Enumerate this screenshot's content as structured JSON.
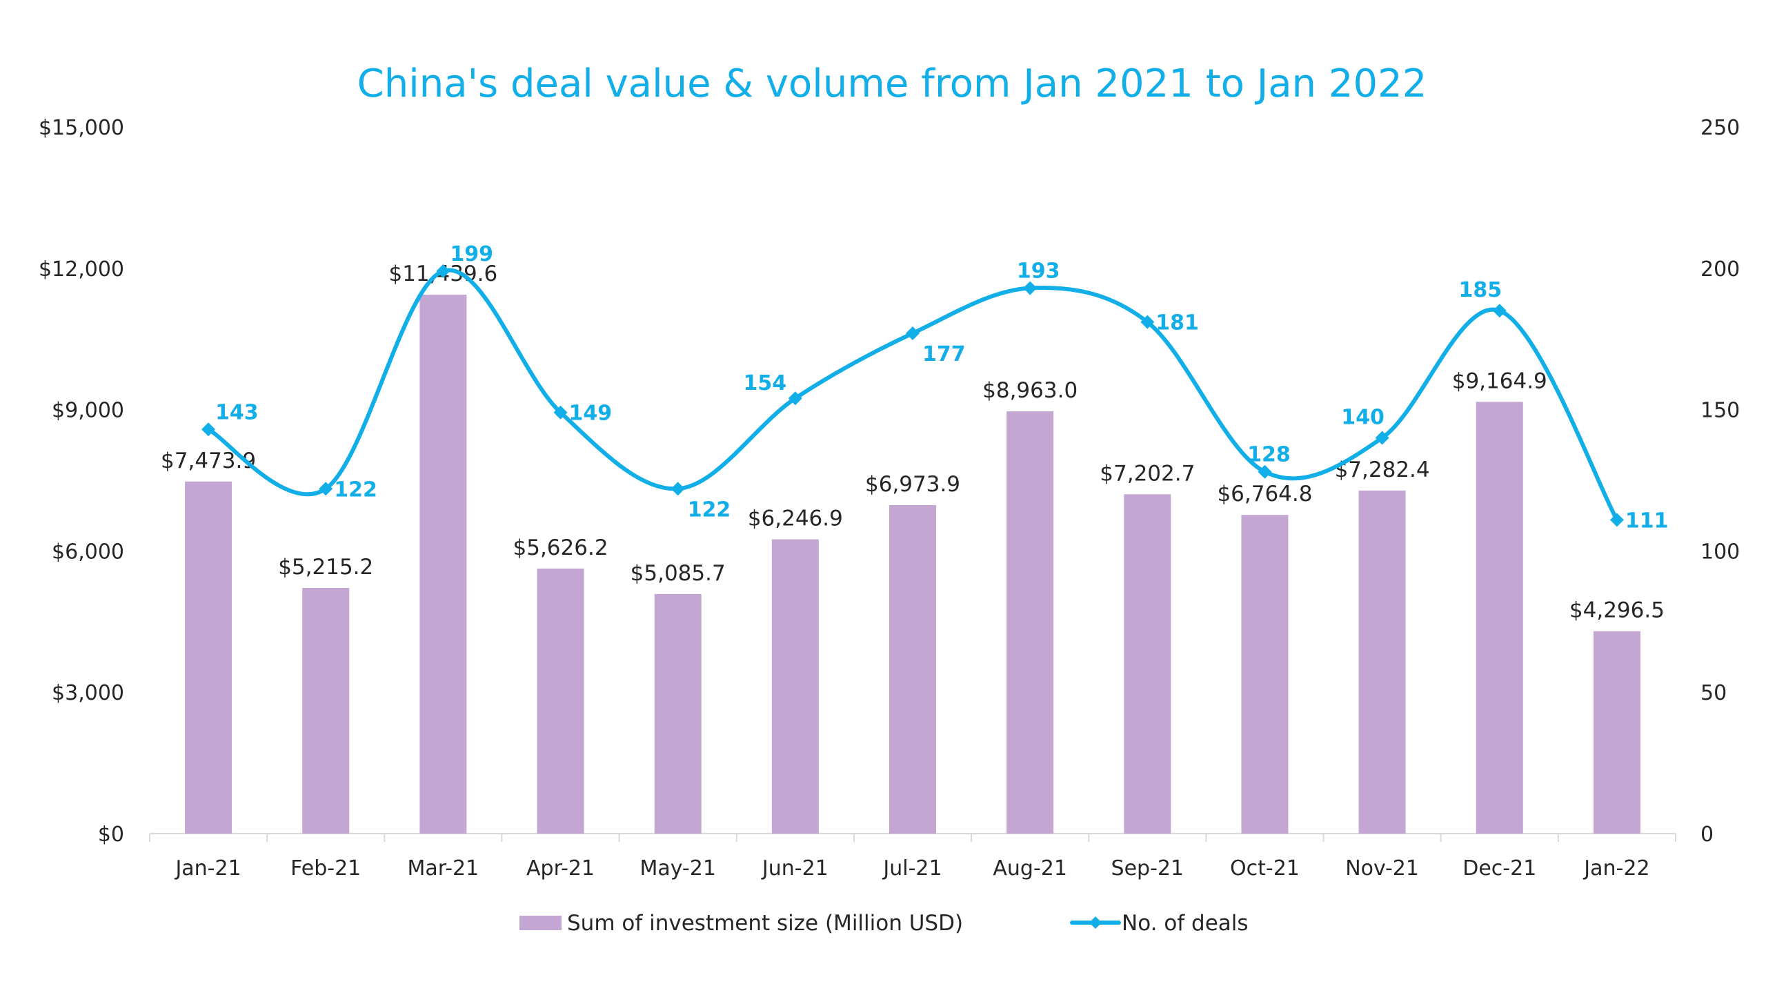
{
  "chart_data": {
    "type": "bar",
    "title": "China's deal value & volume from Jan 2021 to Jan 2022",
    "categories": [
      "Jan-21",
      "Feb-21",
      "Mar-21",
      "Apr-21",
      "May-21",
      "Jun-21",
      "Jul-21",
      "Aug-21",
      "Sep-21",
      "Oct-21",
      "Nov-21",
      "Dec-21",
      "Jan-22"
    ],
    "series": [
      {
        "name": "Sum of investment size (Million USD)",
        "type": "bar",
        "axis": "left",
        "color": "#C3A6D2",
        "values": [
          7473.9,
          5215.2,
          11439.6,
          5626.2,
          5085.7,
          6246.9,
          6973.9,
          8963.0,
          7202.7,
          6764.8,
          7282.4,
          9164.9,
          4296.5
        ],
        "labels": [
          "$7,473.9",
          "$5,215.2",
          "$11,439.6",
          "$5,626.2",
          "$5,085.7",
          "$6,246.9",
          "$6,973.9",
          "$8,963.0",
          "$7,202.7",
          "$6,764.8",
          "$7,282.4",
          "$9,164.9",
          "$4,296.5"
        ]
      },
      {
        "name": "No. of deals",
        "type": "line",
        "smooth": true,
        "marker": "diamond",
        "axis": "right",
        "color": "#12AEE8",
        "values": [
          143,
          122,
          199,
          149,
          122,
          154,
          177,
          193,
          181,
          128,
          140,
          185,
          111
        ],
        "labels": [
          "143",
          "122",
          "199",
          "149",
          "122",
          "154",
          "177",
          "193",
          "181",
          "128",
          "140",
          "185",
          "111"
        ],
        "label_positions": [
          "right-above",
          "right",
          "right-above",
          "right",
          "right-below",
          "left-above",
          "right-below",
          "above",
          "right",
          "above",
          "left-above",
          "left-above",
          "right"
        ]
      }
    ],
    "y_left": {
      "ylim": [
        0,
        15000
      ],
      "ticks": [
        0,
        3000,
        6000,
        9000,
        12000,
        15000
      ],
      "tick_labels": [
        "$0",
        "$3,000",
        "$6,000",
        "$9,000",
        "$12,000",
        "$15,000"
      ]
    },
    "y_right": {
      "ylim": [
        0,
        250
      ],
      "ticks": [
        0,
        50,
        100,
        150,
        200,
        250
      ],
      "tick_labels": [
        "0",
        "50",
        "100",
        "150",
        "200",
        "250"
      ]
    },
    "xlabel": "",
    "ylabel": "",
    "grid": false,
    "legend": {
      "position": "bottom",
      "entries": [
        "Sum of investment size (Million USD)",
        "No. of deals"
      ]
    }
  }
}
